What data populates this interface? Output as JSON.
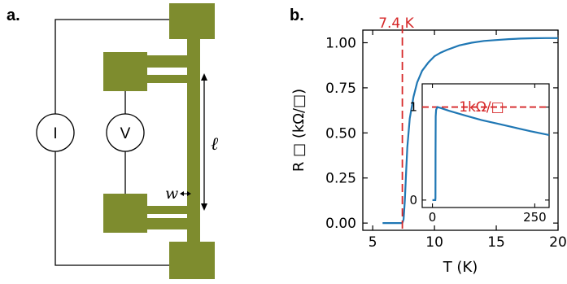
{
  "panel_a": {
    "label": "a.",
    "meter_current": "I",
    "meter_voltage": "V",
    "length_symbol": "ℓ",
    "width_symbol": "w"
  },
  "panel_b": {
    "label": "b.",
    "tc_annotation": "7.4 K",
    "inset_annotation": "1kΩ/□",
    "xlabel": "T (K)",
    "ylabel": "R □ (kΩ/□)"
  },
  "colors": {
    "curve": "#1f77b4",
    "reference_line": "#d62728",
    "device": "#7e8c2e"
  },
  "chart_data": [
    {
      "type": "line",
      "xlabel": "T (K)",
      "ylabel": "R □ (kΩ/□)",
      "xlim": [
        4.2,
        20
      ],
      "ylim": [
        -0.04,
        1.07
      ],
      "xticks": [
        5,
        10,
        15,
        20
      ],
      "yticks": [
        0.0,
        0.25,
        0.5,
        0.75,
        1.0
      ],
      "ytick_labels": [
        "0.00",
        "0.25",
        "0.50",
        "0.75",
        "1.00"
      ],
      "vline": {
        "x": 7.4,
        "label": "7.4 K"
      },
      "series": [
        {
          "x": [
            5.8,
            7.0,
            7.4,
            7.5,
            7.6,
            7.7,
            7.8,
            8.0,
            8.3,
            8.6,
            9.0,
            9.5,
            10.0,
            10.5,
            11.0,
            12.0,
            13.0,
            14.0,
            15.0,
            16.0,
            17.0,
            18.0,
            19.0,
            20.0
          ],
          "y": [
            0.0,
            0.0,
            0.0,
            0.02,
            0.12,
            0.28,
            0.42,
            0.58,
            0.7,
            0.78,
            0.845,
            0.89,
            0.925,
            0.945,
            0.96,
            0.985,
            1.0,
            1.01,
            1.015,
            1.02,
            1.023,
            1.025,
            1.026,
            1.026
          ]
        }
      ]
    },
    {
      "type": "line",
      "inset": true,
      "xlim": [
        -25,
        285
      ],
      "ylim": [
        -0.08,
        1.25
      ],
      "xticks": [
        0,
        250
      ],
      "yticks": [
        0,
        1
      ],
      "hline": {
        "y": 1.0,
        "label": "1kΩ/□"
      },
      "series": [
        {
          "x": [
            0,
            5,
            7,
            7.4,
            7.6,
            8,
            9,
            12,
            20,
            40,
            80,
            120,
            160,
            200,
            240,
            285
          ],
          "y": [
            0,
            0,
            0,
            0.02,
            0.5,
            0.9,
            0.97,
            1.0,
            0.99,
            0.96,
            0.91,
            0.86,
            0.82,
            0.78,
            0.74,
            0.7
          ]
        }
      ]
    }
  ]
}
